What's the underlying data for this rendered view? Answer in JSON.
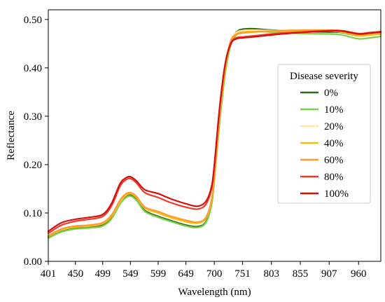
{
  "chart_data": {
    "type": "line",
    "title": "",
    "xlabel": "Wavelength (nm)",
    "ylabel": "Reflectance",
    "xlim": [
      401,
      1000
    ],
    "ylim": [
      0,
      0.52
    ],
    "xticks": [
      401,
      450,
      499,
      549,
      599,
      649,
      700,
      751,
      803,
      855,
      907,
      960
    ],
    "xtick_labels": [
      "401",
      "450",
      "499",
      "549",
      "599",
      "649",
      "700",
      "751",
      "803",
      "855",
      "907",
      "960"
    ],
    "yticks": [
      0,
      0.1,
      0.2,
      0.3,
      0.4,
      0.5
    ],
    "ytick_labels": [
      "0.00",
      "0.10",
      "0.20",
      "0.30",
      "0.40",
      "0.50"
    ],
    "grid": false,
    "legend": {
      "title": "Disease severity",
      "placement": "right"
    },
    "x": [
      401,
      425,
      450,
      475,
      499,
      515,
      530,
      540,
      549,
      560,
      575,
      599,
      620,
      649,
      670,
      685,
      695,
      700,
      710,
      720,
      730,
      740,
      751,
      770,
      803,
      855,
      907,
      930,
      960,
      980,
      1000
    ],
    "series": [
      {
        "name": "0%",
        "color": "#2e6b1f",
        "values": [
          0.05,
          0.063,
          0.069,
          0.071,
          0.075,
          0.09,
          0.12,
          0.133,
          0.137,
          0.128,
          0.105,
          0.093,
          0.085,
          0.075,
          0.072,
          0.082,
          0.12,
          0.17,
          0.3,
          0.4,
          0.455,
          0.474,
          0.48,
          0.481,
          0.478,
          0.475,
          0.474,
          0.473,
          0.466,
          0.468,
          0.47
        ]
      },
      {
        "name": "10%",
        "color": "#7ccf47",
        "values": [
          0.048,
          0.061,
          0.067,
          0.069,
          0.073,
          0.088,
          0.118,
          0.131,
          0.135,
          0.126,
          0.103,
          0.091,
          0.083,
          0.073,
          0.07,
          0.08,
          0.116,
          0.165,
          0.29,
          0.39,
          0.448,
          0.468,
          0.475,
          0.476,
          0.474,
          0.471,
          0.47,
          0.468,
          0.46,
          0.462,
          0.465
        ]
      },
      {
        "name": "20%",
        "color": "#ffe9a6",
        "values": [
          0.052,
          0.065,
          0.071,
          0.073,
          0.078,
          0.094,
          0.123,
          0.136,
          0.14,
          0.132,
          0.11,
          0.1,
          0.091,
          0.082,
          0.079,
          0.089,
          0.126,
          0.175,
          0.305,
          0.405,
          0.458,
          0.473,
          0.477,
          0.478,
          0.477,
          0.476,
          0.476,
          0.474,
          0.467,
          0.469,
          0.471
        ]
      },
      {
        "name": "40%",
        "color": "#f5c00f",
        "values": [
          0.052,
          0.066,
          0.071,
          0.073,
          0.078,
          0.094,
          0.124,
          0.137,
          0.14,
          0.132,
          0.11,
          0.1,
          0.091,
          0.082,
          0.079,
          0.089,
          0.125,
          0.174,
          0.303,
          0.402,
          0.455,
          0.47,
          0.474,
          0.475,
          0.475,
          0.475,
          0.476,
          0.474,
          0.466,
          0.468,
          0.47
        ]
      },
      {
        "name": "60%",
        "color": "#ff9a2c",
        "values": [
          0.053,
          0.067,
          0.073,
          0.075,
          0.08,
          0.096,
          0.126,
          0.139,
          0.142,
          0.134,
          0.112,
          0.103,
          0.094,
          0.085,
          0.081,
          0.091,
          0.127,
          0.176,
          0.306,
          0.405,
          0.456,
          0.469,
          0.472,
          0.474,
          0.476,
          0.478,
          0.478,
          0.476,
          0.469,
          0.471,
          0.473
        ]
      },
      {
        "name": "80%",
        "color": "#ee3a2a",
        "values": [
          0.058,
          0.075,
          0.083,
          0.087,
          0.093,
          0.115,
          0.155,
          0.168,
          0.171,
          0.162,
          0.142,
          0.132,
          0.122,
          0.112,
          0.108,
          0.118,
          0.15,
          0.195,
          0.32,
          0.41,
          0.452,
          0.462,
          0.464,
          0.466,
          0.47,
          0.474,
          0.477,
          0.477,
          0.471,
          0.473,
          0.475
        ]
      },
      {
        "name": "100%",
        "color": "#d80f0f",
        "values": [
          0.062,
          0.08,
          0.087,
          0.091,
          0.097,
          0.12,
          0.16,
          0.172,
          0.175,
          0.166,
          0.148,
          0.14,
          0.13,
          0.119,
          0.114,
          0.124,
          0.154,
          0.198,
          0.322,
          0.41,
          0.45,
          0.46,
          0.462,
          0.464,
          0.468,
          0.473,
          0.476,
          0.476,
          0.47,
          0.472,
          0.474
        ]
      }
    ]
  }
}
